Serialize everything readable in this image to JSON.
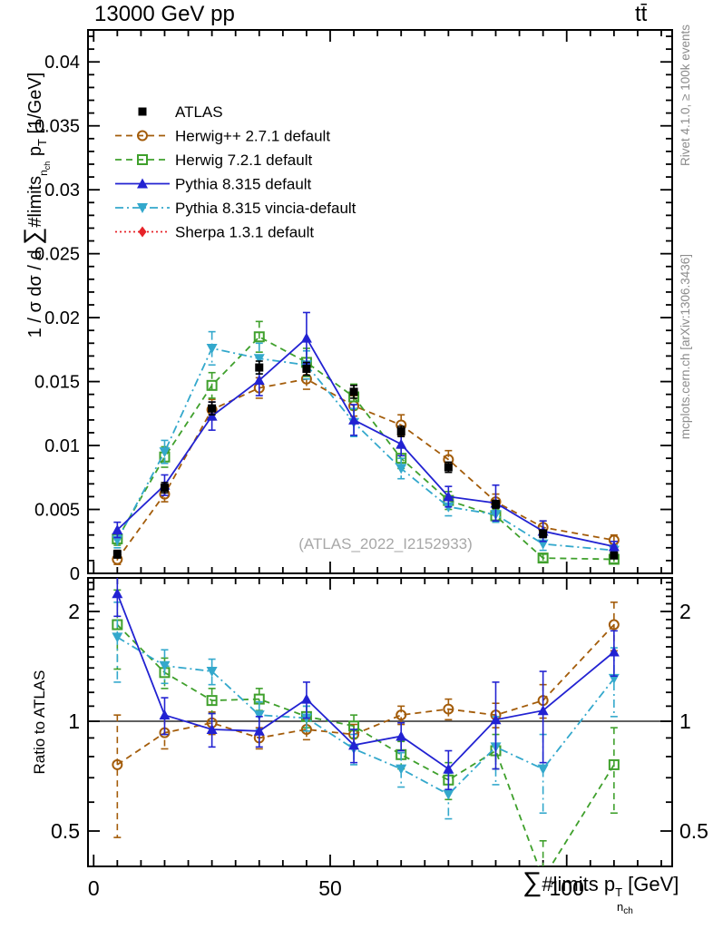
{
  "header": {
    "beam": "13000 GeV pp",
    "process": "tt̄"
  },
  "watermark": "(ATLAS_2022_I2152933)",
  "side_notes": {
    "top": "Rivet 4.1.0, ≥ 100k events",
    "bottom": "mcplots.cern.ch [arXiv:1306.3436]"
  },
  "labels": {
    "main_y": {
      "prefix": "1 / σ dσ / d ",
      "sum": "∑",
      "limits": "#limits",
      "sub_n": "n",
      "sub_ch": "ch",
      "p": "p",
      "p_sub": "T",
      "units": " [1/GeV]"
    },
    "x": {
      "sum": "∑",
      "limits": "#limits",
      "sub_n": "n",
      "sub_ch": "ch",
      "p": "p",
      "p_sub": "T",
      "units": " [GeV]"
    },
    "ratio_y": "Ratio to ATLAS"
  },
  "chart_data": {
    "type": "line",
    "x": [
      5,
      15,
      25,
      35,
      45,
      55,
      65,
      75,
      85,
      95,
      110
    ],
    "xlim": [
      -1.2,
      122.3
    ],
    "main_ylim": [
      0,
      0.0425
    ],
    "ratio_ylim": [
      0.4,
      2.47
    ],
    "ratio_scale": "log2",
    "x_major_ticks": [
      0,
      50,
      100
    ],
    "x_major_labels": [
      "0",
      "50",
      "100"
    ],
    "x_minor_step": 5,
    "x_minor_max": 120,
    "y_major_ticks": [
      0,
      0.005,
      0.01,
      0.015,
      0.02,
      0.025,
      0.03,
      0.035,
      0.04
    ],
    "y_major_labels": [
      "0",
      "0.005",
      "0.01",
      "0.015",
      "0.02",
      "0.025",
      "0.03",
      "0.035",
      "0.04"
    ],
    "y_minor_step": 0.001,
    "ratio_major_ticks": [
      0.5,
      1,
      2
    ],
    "ratio_major_labels": [
      "0.5",
      "1",
      "2"
    ],
    "ratio_minor_ticks": [
      0.4,
      0.6,
      0.7,
      0.8,
      0.9,
      1.1,
      1.2,
      1.3,
      1.4,
      1.5,
      1.6,
      1.7,
      1.8,
      1.9,
      2.1,
      2.2,
      2.3,
      2.4
    ],
    "reference_line": 1,
    "legend_position": "top-left",
    "grid": false,
    "series": [
      {
        "id": "atlas",
        "label": "ATLAS",
        "color": "#000000",
        "marker": "square-filled",
        "dash": "",
        "values": [
          0.0015,
          0.0067,
          0.0129,
          0.0161,
          0.016,
          0.0142,
          0.0111,
          0.0083,
          0.0054,
          0.0031,
          0.0014
        ],
        "errors": [
          0.0003,
          0.0004,
          0.0005,
          0.0005,
          0.0005,
          0.0005,
          0.0004,
          0.0004,
          0.0003,
          0.0003,
          0.00015
        ],
        "ratio": [],
        "ratio_errors": []
      },
      {
        "id": "herwigpp",
        "label": "Herwig++ 2.7.1 default",
        "color": "#a35c0a",
        "marker": "circle-open",
        "dash": "7,5",
        "values": [
          0.0011,
          0.0062,
          0.0128,
          0.0145,
          0.0152,
          0.0131,
          0.0116,
          0.0089,
          0.0056,
          0.0036,
          0.0026
        ],
        "errors": [
          0.0004,
          0.0006,
          0.0008,
          0.0008,
          0.0008,
          0.0008,
          0.0008,
          0.0007,
          0.0006,
          0.0005,
          0.0004
        ],
        "ratio": [
          0.76,
          0.93,
          0.99,
          0.9,
          0.95,
          0.92,
          1.04,
          1.08,
          1.04,
          1.14,
          1.84
        ],
        "ratio_errors": [
          0.28,
          0.09,
          0.07,
          0.06,
          0.06,
          0.06,
          0.06,
          0.07,
          0.08,
          0.12,
          0.28
        ]
      },
      {
        "id": "herwig7",
        "label": "Herwig 7.2.1 default",
        "color": "#3fa02c",
        "marker": "square-open",
        "dash": "7,5",
        "values": [
          0.0027,
          0.0091,
          0.0147,
          0.0185,
          0.0165,
          0.0138,
          0.009,
          0.0057,
          0.0045,
          0.0012,
          0.0011
        ],
        "errors": [
          0.0005,
          0.0008,
          0.001,
          0.0012,
          0.0011,
          0.001,
          0.0008,
          0.0007,
          0.0005,
          0.0003,
          0.0003
        ],
        "ratio": [
          1.84,
          1.36,
          1.14,
          1.15,
          1.03,
          0.97,
          0.81,
          0.69,
          0.83,
          0.37,
          0.76
        ],
        "ratio_errors": [
          0.45,
          0.13,
          0.09,
          0.08,
          0.07,
          0.07,
          0.07,
          0.08,
          0.09,
          0.1,
          0.2
        ]
      },
      {
        "id": "pythia",
        "label": "Pythia 8.315 default",
        "color": "#2222d2",
        "marker": "triangle-up-filled",
        "dash": "",
        "values": [
          0.0034,
          0.0069,
          0.0123,
          0.0151,
          0.0184,
          0.012,
          0.0101,
          0.006,
          0.0055,
          0.0033,
          0.0021
        ],
        "errors": [
          0.0006,
          0.0008,
          0.0011,
          0.0012,
          0.002,
          0.0012,
          0.0009,
          0.0008,
          0.0014,
          0.0008,
          0.0004
        ],
        "ratio": [
          2.24,
          1.04,
          0.95,
          0.94,
          1.15,
          0.86,
          0.91,
          0.74,
          1.01,
          1.07,
          1.55
        ],
        "ratio_errors": [
          0.3,
          0.12,
          0.1,
          0.09,
          0.13,
          0.09,
          0.08,
          0.09,
          0.27,
          0.3,
          0.22
        ]
      },
      {
        "id": "vincia",
        "label": "Pythia 8.315 vincia-default",
        "color": "#33a8cc",
        "marker": "triangle-down-filled",
        "dash": "9,4,2,4",
        "values": [
          0.0026,
          0.0095,
          0.0176,
          0.0168,
          0.0163,
          0.0118,
          0.0082,
          0.0052,
          0.0046,
          0.0023,
          0.0018
        ],
        "errors": [
          0.0006,
          0.0009,
          0.0013,
          0.0012,
          0.0011,
          0.0011,
          0.0008,
          0.0007,
          0.0006,
          0.0005,
          0.0004
        ],
        "ratio": [
          1.7,
          1.42,
          1.37,
          1.04,
          1.02,
          0.84,
          0.74,
          0.63,
          0.85,
          0.74,
          1.31
        ],
        "ratio_errors": [
          0.42,
          0.15,
          0.11,
          0.09,
          0.08,
          0.08,
          0.08,
          0.09,
          0.18,
          0.18,
          0.28
        ]
      },
      {
        "id": "sherpa",
        "label": "Sherpa 1.3.1 default",
        "color": "#e62329",
        "marker": "diamond-filled",
        "dash": "2,3",
        "values": [],
        "errors": [],
        "ratio": [],
        "ratio_errors": []
      }
    ]
  }
}
